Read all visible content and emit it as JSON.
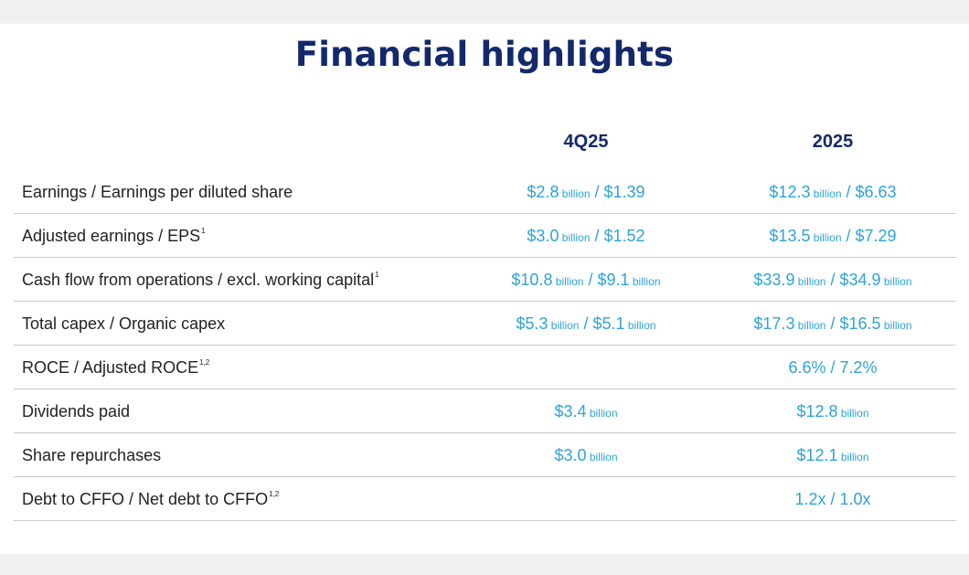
{
  "title": "Financial highlights",
  "columns": {
    "q": "4Q25",
    "y": "2025"
  },
  "rows": [
    {
      "label": "Earnings / Earnings per diluted share",
      "sup": "",
      "q": {
        "a": "$2.8",
        "au": " billion",
        "sep": " / ",
        "b": "$1.39",
        "bu": ""
      },
      "y": {
        "a": "$12.3",
        "au": " billion",
        "sep": " / ",
        "b": "$6.63",
        "bu": ""
      }
    },
    {
      "label": "Adjusted earnings / EPS",
      "sup": "1",
      "q": {
        "a": "$3.0",
        "au": " billion",
        "sep": " / ",
        "b": "$1.52",
        "bu": ""
      },
      "y": {
        "a": "$13.5",
        "au": " billion",
        "sep": " / ",
        "b": "$7.29",
        "bu": ""
      }
    },
    {
      "label": "Cash flow from operations / excl. working capital",
      "sup": "1",
      "q": {
        "a": "$10.8",
        "au": " billion",
        "sep": " / ",
        "b": "$9.1",
        "bu": " billion"
      },
      "y": {
        "a": "$33.9",
        "au": " billion",
        "sep": " / ",
        "b": "$34.9",
        "bu": " billion"
      }
    },
    {
      "label": "Total capex / Organic capex",
      "sup": "",
      "q": {
        "a": "$5.3",
        "au": " billion",
        "sep": " / ",
        "b": "$5.1",
        "bu": " billion"
      },
      "y": {
        "a": "$17.3",
        "au": " billion",
        "sep": " / ",
        "b": "$16.5",
        "bu": " billion"
      }
    },
    {
      "label": "ROCE / Adjusted ROCE",
      "sup": "1,2",
      "q": {
        "a": "",
        "au": "",
        "sep": "",
        "b": "",
        "bu": ""
      },
      "y": {
        "a": "6.6% / 7.2%",
        "au": "",
        "sep": "",
        "b": "",
        "bu": ""
      }
    },
    {
      "label": "Dividends paid",
      "sup": "",
      "q": {
        "a": "$3.4",
        "au": " billion",
        "sep": "",
        "b": "",
        "bu": ""
      },
      "y": {
        "a": "$12.8",
        "au": " billion",
        "sep": "",
        "b": "",
        "bu": ""
      }
    },
    {
      "label": "Share repurchases",
      "sup": "",
      "q": {
        "a": "$3.0",
        "au": " billion",
        "sep": "",
        "b": "",
        "bu": ""
      },
      "y": {
        "a": "$12.1",
        "au": " billion",
        "sep": "",
        "b": "",
        "bu": ""
      }
    },
    {
      "label": "Debt to CFFO / Net debt to CFFO",
      "sup": "1,2",
      "q": {
        "a": "",
        "au": "",
        "sep": "",
        "b": "",
        "bu": ""
      },
      "y": {
        "a": "1.2x / 1.0x",
        "au": "",
        "sep": "",
        "b": "",
        "bu": ""
      }
    }
  ],
  "colors": {
    "title": "#13296c",
    "value": "#2ea3d6",
    "label": "#222222",
    "rule": "#c9c9c9"
  }
}
